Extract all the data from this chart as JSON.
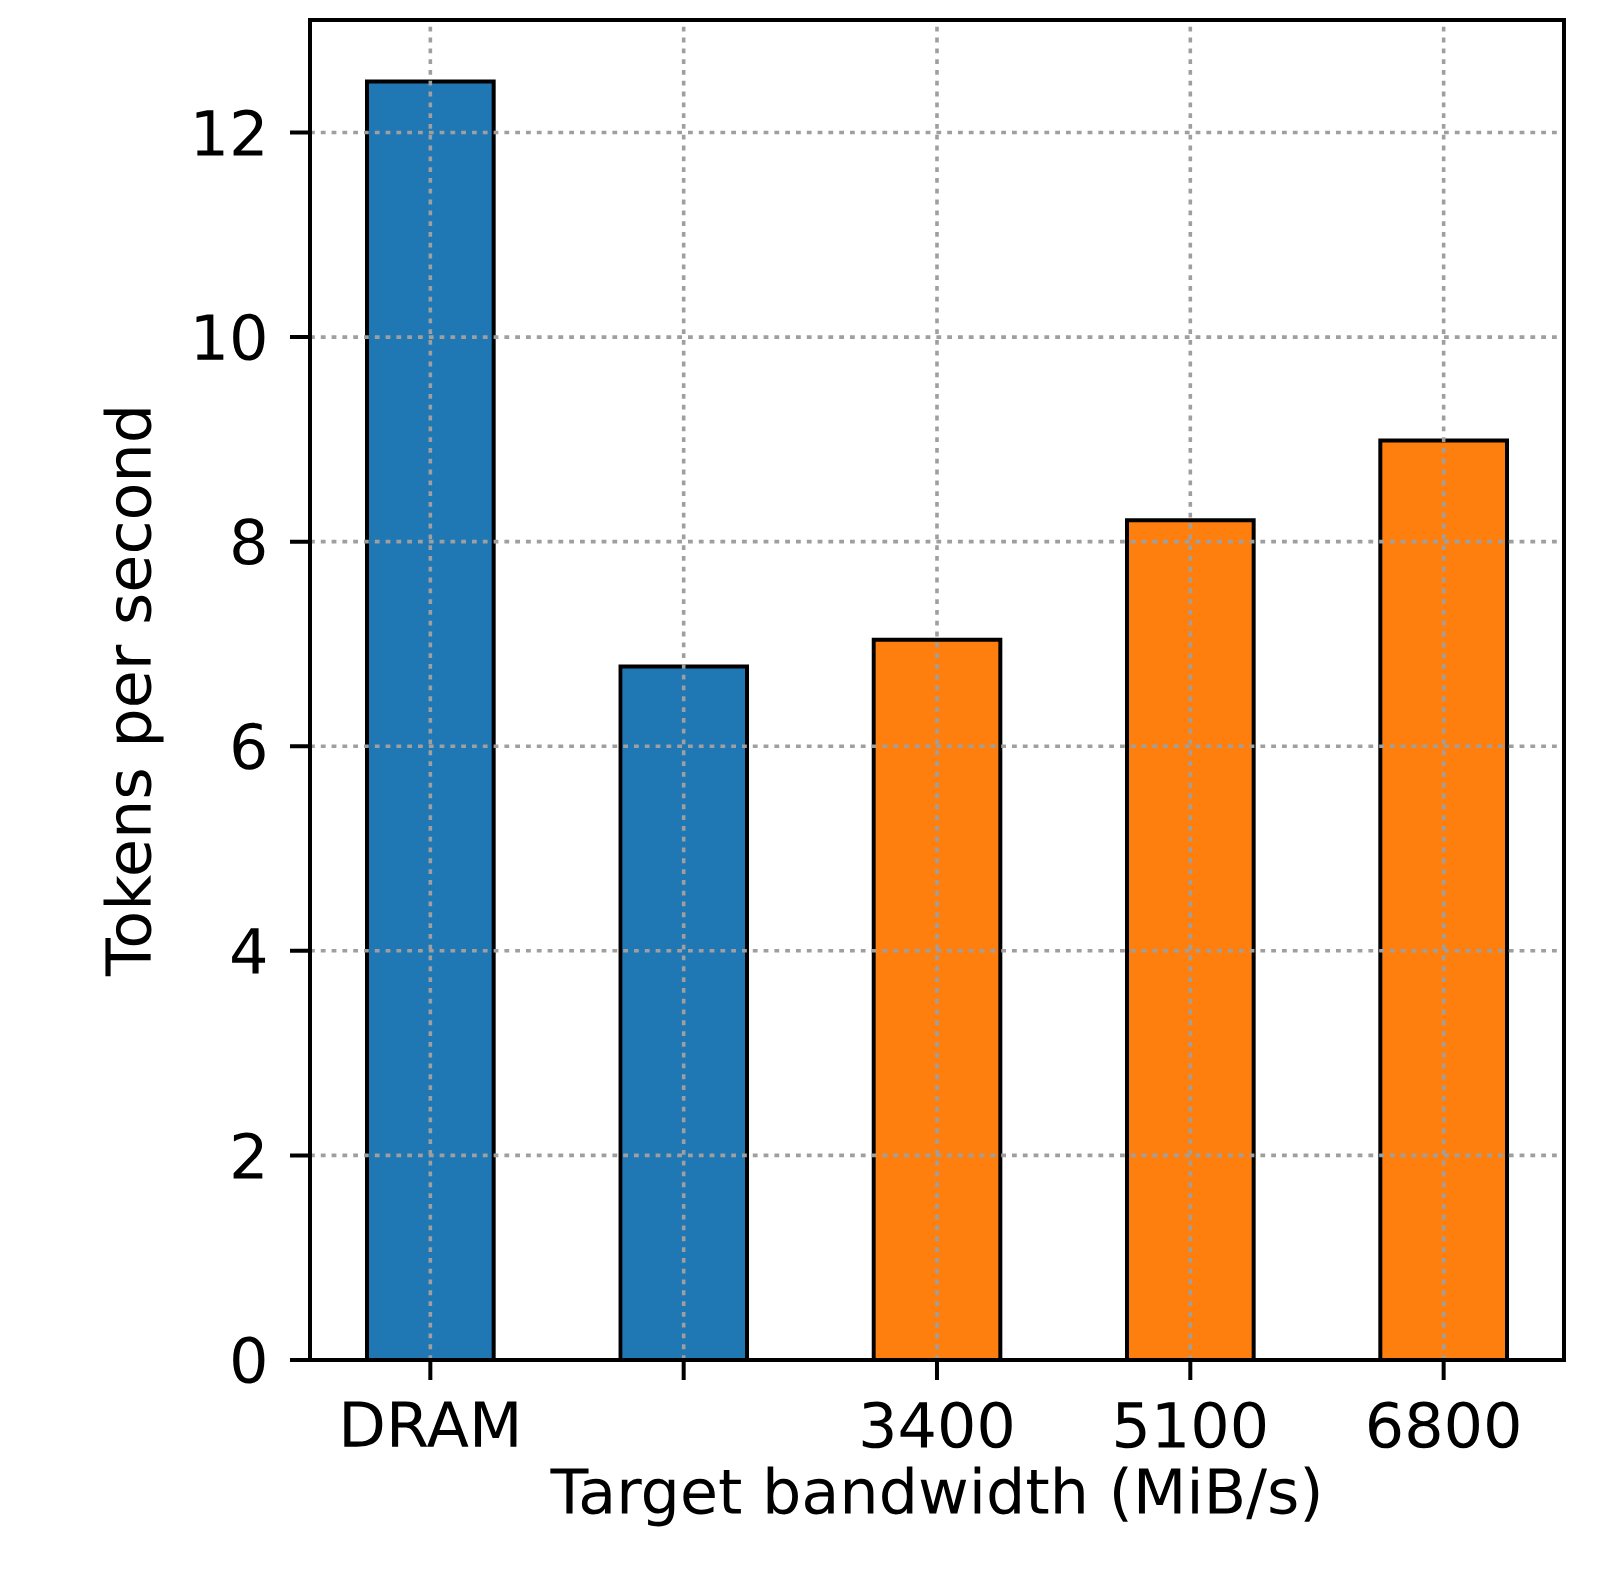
{
  "chart_data": {
    "type": "bar",
    "xlabel": "Target bandwidth (MiB/s)",
    "ylabel": "Tokens per second",
    "categories": [
      "DRAM",
      null,
      "3400",
      "5100",
      "6800"
    ],
    "values": [
      12.5,
      6.78,
      7.04,
      8.21,
      8.99
    ],
    "colors": [
      "#1f77b4",
      "#1f77b4",
      "#ff7f0e",
      "#ff7f0e",
      "#ff7f0e"
    ],
    "ylim": [
      0,
      13.1
    ],
    "yticks": [
      0,
      2,
      4,
      6,
      8,
      10,
      12
    ],
    "grid": true,
    "line_style": "dotted"
  }
}
